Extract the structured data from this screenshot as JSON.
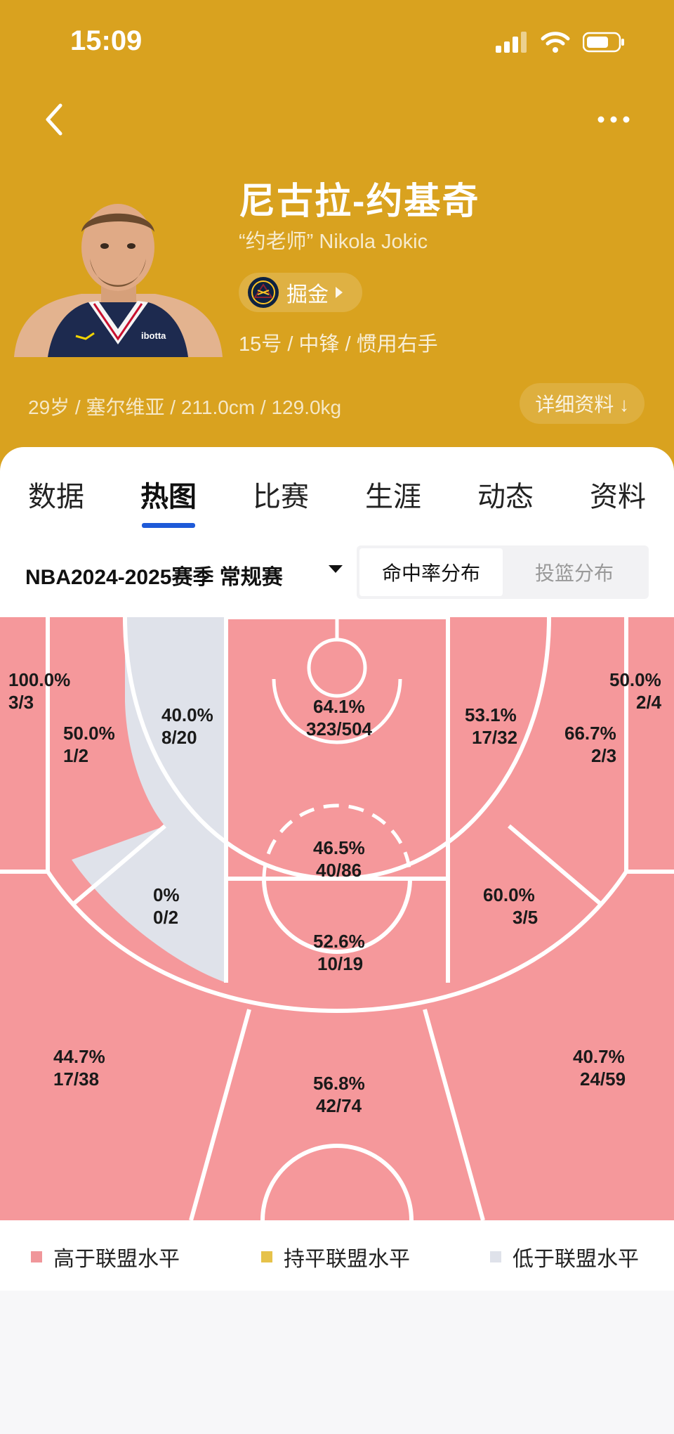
{
  "status_bar": {
    "time": "15:09"
  },
  "player": {
    "name": "尼古拉-约基奇",
    "nickname": "“约老师” Nikola Jokic",
    "team": "掘金",
    "meta": "15号 / 中锋 / 惯用右手",
    "info": "29岁 / 塞尔维亚 / 211.0cm / 129.0kg",
    "detail_label": "详细资料 ↓"
  },
  "tabs": [
    "数据",
    "热图",
    "比赛",
    "生涯",
    "动态",
    "资料"
  ],
  "active_tab": "热图",
  "season": {
    "label": "NBA2024-2025赛季 常规赛"
  },
  "mode_toggle": {
    "selected": "命中率分布",
    "other": "投篮分布"
  },
  "zones": [
    {
      "id": "left-corner-3",
      "pct": "100.0%",
      "made_att": "3/3",
      "level": "above"
    },
    {
      "id": "left-baseline-mid",
      "pct": "50.0%",
      "made_att": "1/2",
      "level": "above"
    },
    {
      "id": "left-elbow-mid",
      "pct": "40.0%",
      "made_att": "8/20",
      "level": "below"
    },
    {
      "id": "restricted-area",
      "pct": "64.1%",
      "made_att": "323/504",
      "level": "above"
    },
    {
      "id": "right-elbow-mid",
      "pct": "53.1%",
      "made_att": "17/32",
      "level": "above"
    },
    {
      "id": "right-baseline-mid",
      "pct": "66.7%",
      "made_att": "2/3",
      "level": "above"
    },
    {
      "id": "right-corner-3",
      "pct": "50.0%",
      "made_att": "2/4",
      "level": "above"
    },
    {
      "id": "paint-free-throw",
      "pct": "46.5%",
      "made_att": "40/86",
      "level": "above"
    },
    {
      "id": "left-wing-mid",
      "pct": "0%",
      "made_att": "0/2",
      "level": "below"
    },
    {
      "id": "top-key-mid",
      "pct": "52.6%",
      "made_att": "10/19",
      "level": "above"
    },
    {
      "id": "right-wing-mid",
      "pct": "60.0%",
      "made_att": "3/5",
      "level": "above"
    },
    {
      "id": "left-wing-3",
      "pct": "44.7%",
      "made_att": "17/38",
      "level": "above"
    },
    {
      "id": "top-3",
      "pct": "56.8%",
      "made_att": "42/74",
      "level": "above"
    },
    {
      "id": "right-wing-3",
      "pct": "40.7%",
      "made_att": "24/59",
      "level": "above"
    }
  ],
  "legend": [
    {
      "label": "高于联盟水平",
      "color": "#f0969a"
    },
    {
      "label": "持平联盟水平",
      "color": "#e6c24a"
    },
    {
      "label": "低于联盟水平",
      "color": "#dfe2ea"
    }
  ],
  "colors": {
    "header": "#d9a21f",
    "above": "#f5989b",
    "below": "#dfe2ea",
    "tab_underline": "#1e5ad8"
  }
}
